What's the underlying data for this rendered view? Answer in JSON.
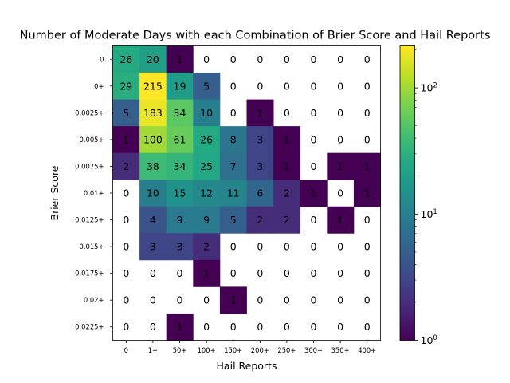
{
  "chart_data": {
    "type": "heatmap",
    "title": "Number of Moderate Days with each Combination of Brier Score and Hail Reports",
    "xlabel": "Hail Reports",
    "ylabel": "Brier Score",
    "x_categories": [
      "0",
      "1+",
      "50+",
      "100+",
      "150+",
      "200+",
      "250+",
      "300+",
      "350+",
      "400+"
    ],
    "y_categories": [
      "0",
      "0+",
      "0.0025+",
      "0.005+",
      "0.0075+",
      "0.01+",
      "0.0125+",
      "0.015+",
      "0.0175+",
      "0.02+",
      "0.0225+"
    ],
    "values": [
      [
        26,
        20,
        1,
        0,
        0,
        0,
        0,
        0,
        0,
        0
      ],
      [
        29,
        215,
        19,
        5,
        0,
        0,
        0,
        0,
        0,
        0
      ],
      [
        5,
        183,
        54,
        10,
        0,
        1,
        0,
        0,
        0,
        0
      ],
      [
        1,
        100,
        61,
        26,
        8,
        3,
        1,
        0,
        0,
        0
      ],
      [
        2,
        38,
        34,
        25,
        7,
        3,
        1,
        0,
        1,
        1
      ],
      [
        0,
        10,
        15,
        12,
        11,
        6,
        2,
        1,
        0,
        1
      ],
      [
        0,
        4,
        9,
        9,
        5,
        2,
        2,
        0,
        1,
        0
      ],
      [
        0,
        3,
        3,
        2,
        0,
        0,
        0,
        0,
        0,
        0
      ],
      [
        0,
        0,
        0,
        1,
        0,
        0,
        0,
        0,
        0,
        0
      ],
      [
        0,
        0,
        0,
        0,
        1,
        0,
        0,
        0,
        0,
        0
      ],
      [
        0,
        0,
        1,
        0,
        0,
        0,
        0,
        0,
        0,
        0
      ]
    ],
    "colormap": "viridis",
    "color_scale": "log",
    "zero_cells": "white",
    "colorbar": {
      "range": [
        1,
        215
      ],
      "major_ticks": [
        {
          "value": 1,
          "base": "10",
          "exp": "0"
        },
        {
          "value": 10,
          "base": "10",
          "exp": "1"
        },
        {
          "value": 100,
          "base": "10",
          "exp": "2"
        }
      ],
      "minor_ticks": [
        2,
        3,
        4,
        5,
        6,
        7,
        8,
        9,
        20,
        30,
        40,
        50,
        60,
        70,
        80,
        90,
        200
      ]
    },
    "grid": false
  }
}
